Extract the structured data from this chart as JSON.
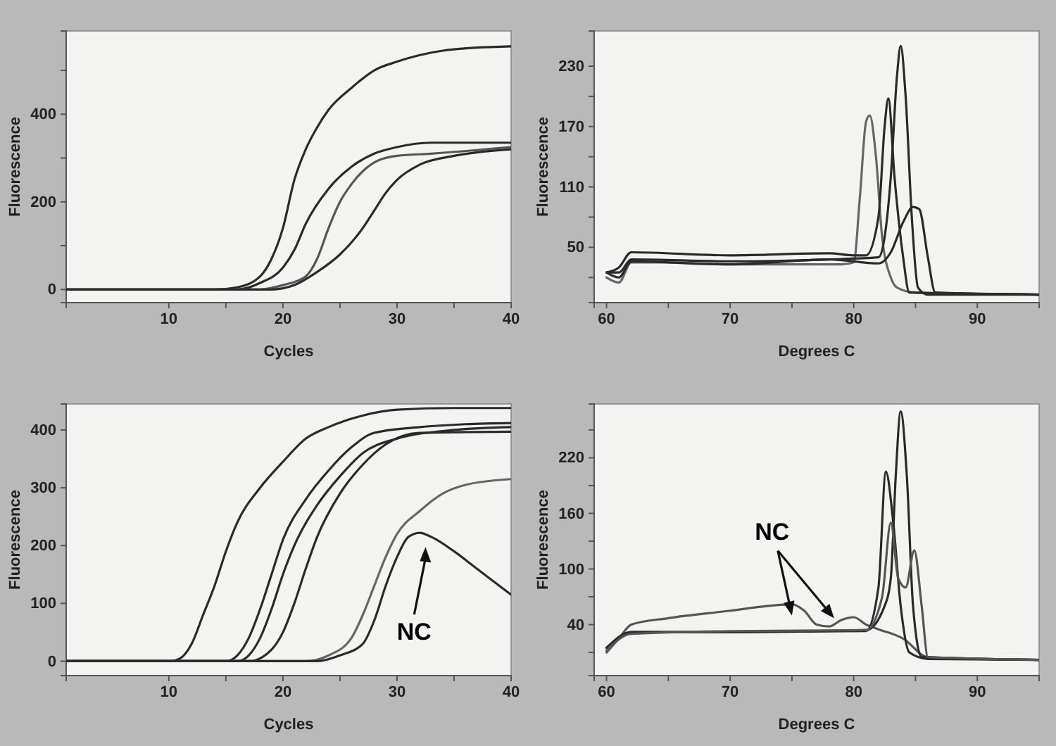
{
  "chart_data": [
    {
      "type": "line",
      "xlabel": "Cycles",
      "ylabel": "Fluorescence",
      "xlim": [
        1,
        40
      ],
      "ylim": [
        -30,
        590
      ],
      "xticks": [
        10,
        {
          "value": 15,
          "label": null
        },
        20,
        {
          "value": 25,
          "label": null
        },
        30,
        {
          "value": 35,
          "label": null
        },
        40
      ],
      "yticks": [
        0,
        {
          "value": 100,
          "label": null
        },
        200,
        {
          "value": 300,
          "label": null
        },
        400,
        {
          "value": 500,
          "label": null
        }
      ],
      "series": [
        {
          "color": "#2a2a2a",
          "x": [
            1,
            14,
            16,
            18,
            19,
            20,
            21,
            22,
            23,
            24,
            26,
            28,
            30,
            32,
            34,
            37,
            40
          ],
          "values": [
            0,
            0,
            5,
            30,
            70,
            140,
            250,
            320,
            370,
            410,
            460,
            500,
            520,
            535,
            545,
            552,
            555
          ]
        },
        {
          "color": "#2a2a2a",
          "x": [
            1,
            16,
            18,
            20,
            21,
            22,
            24,
            26,
            28,
            30,
            33,
            40
          ],
          "values": [
            0,
            0,
            15,
            50,
            90,
            150,
            230,
            280,
            310,
            325,
            335,
            335
          ]
        },
        {
          "color": "#555555",
          "x": [
            1,
            18,
            20,
            22,
            23,
            24,
            25,
            26,
            28,
            30,
            33,
            40
          ],
          "values": [
            0,
            0,
            10,
            30,
            70,
            140,
            200,
            240,
            290,
            305,
            310,
            325
          ]
        },
        {
          "color": "#2a2a2a",
          "x": [
            1,
            19,
            21,
            23,
            25,
            27,
            28,
            29,
            30,
            32,
            35,
            40
          ],
          "values": [
            0,
            0,
            10,
            40,
            80,
            140,
            180,
            220,
            250,
            285,
            305,
            320
          ]
        }
      ]
    },
    {
      "type": "line",
      "xlabel": "Degrees C",
      "ylabel": "Fluorescence",
      "xlim": [
        59,
        95
      ],
      "ylim": [
        -5,
        265
      ],
      "xticks": [
        60,
        {
          "value": 65,
          "label": null
        },
        70,
        {
          "value": 75,
          "label": null
        },
        80,
        {
          "value": 85,
          "label": null
        },
        90
      ],
      "yticks": [
        {
          "value": 20,
          "label": null
        },
        50,
        {
          "value": 80,
          "label": null
        },
        110,
        {
          "value": 140,
          "label": null
        },
        170,
        {
          "value": 200,
          "label": null
        },
        230
      ],
      "series": [
        {
          "color": "#666666",
          "x": [
            60,
            61,
            62,
            65,
            70,
            75,
            79,
            80,
            80.5,
            81,
            81.3,
            81.8,
            82.3,
            83,
            83.5,
            85,
            95
          ],
          "values": [
            20,
            15,
            35,
            35,
            33,
            33,
            33,
            35,
            100,
            175,
            181,
            140,
            60,
            20,
            10,
            5,
            3
          ]
        },
        {
          "color": "#2a2a2a",
          "x": [
            60,
            61,
            62,
            70,
            78,
            80,
            81,
            82,
            82.5,
            82.8,
            83.3,
            84,
            84.5,
            95
          ],
          "values": [
            25,
            30,
            45,
            42,
            44,
            42,
            42,
            80,
            170,
            198,
            120,
            40,
            5,
            3
          ]
        },
        {
          "color": "#2a2a2a",
          "x": [
            60,
            61,
            62,
            70,
            78,
            82,
            83,
            83.5,
            83.8,
            84.2,
            84.7,
            85.2,
            86,
            95
          ],
          "values": [
            25,
            25,
            38,
            36,
            38,
            40,
            120,
            220,
            250,
            200,
            80,
            10,
            3,
            3
          ]
        },
        {
          "color": "#2a2a2a",
          "x": [
            60,
            61,
            62,
            70,
            78,
            82,
            83,
            84,
            84.8,
            85.3,
            86,
            86.6,
            95
          ],
          "values": [
            25,
            20,
            36,
            33,
            38,
            34,
            45,
            75,
            90,
            88,
            40,
            5,
            3
          ]
        }
      ]
    },
    {
      "type": "line",
      "xlabel": "Cycles",
      "ylabel": "Fluorescence",
      "xlim": [
        1,
        40
      ],
      "ylim": [
        -25,
        445
      ],
      "xticks": [
        10,
        {
          "value": 15,
          "label": null
        },
        20,
        {
          "value": 25,
          "label": null
        },
        30,
        {
          "value": 35,
          "label": null
        },
        40
      ],
      "yticks": [
        0,
        100,
        200,
        300,
        400
      ],
      "annotations": [
        "NC"
      ],
      "series": [
        {
          "color": "#2a2a2a",
          "x": [
            1,
            10,
            11,
            12,
            13,
            14,
            15,
            16,
            18,
            20,
            22,
            24,
            27,
            30,
            35,
            40
          ],
          "values": [
            0,
            0,
            5,
            30,
            80,
            130,
            190,
            240,
            300,
            345,
            385,
            405,
            425,
            435,
            438,
            438
          ]
        },
        {
          "color": "#2a2a2a",
          "x": [
            1,
            15,
            16,
            17,
            18,
            19,
            20,
            22,
            24,
            26,
            28,
            32,
            36,
            40
          ],
          "values": [
            0,
            0,
            10,
            40,
            90,
            150,
            210,
            280,
            330,
            370,
            395,
            405,
            410,
            412
          ]
        },
        {
          "color": "#2a2a2a",
          "x": [
            1,
            16,
            17,
            18,
            19,
            20,
            21,
            23,
            25,
            27,
            30,
            35,
            40
          ],
          "values": [
            0,
            0,
            10,
            40,
            90,
            150,
            200,
            270,
            320,
            360,
            385,
            400,
            405
          ]
        },
        {
          "color": "#2a2a2a",
          "x": [
            1,
            17,
            19,
            20,
            21,
            22,
            23,
            25,
            27,
            29,
            32,
            40
          ],
          "values": [
            0,
            0,
            20,
            50,
            100,
            160,
            215,
            290,
            340,
            375,
            395,
            397
          ]
        },
        {
          "color": "#666666",
          "x": [
            1,
            22,
            24,
            26,
            27,
            28,
            29,
            30,
            32,
            34,
            36,
            40
          ],
          "values": [
            0,
            0,
            10,
            40,
            80,
            130,
            180,
            220,
            260,
            290,
            305,
            315
          ]
        },
        {
          "color": "#2a2a2a",
          "x": [
            1,
            23,
            25,
            27,
            28,
            29,
            30,
            31,
            32,
            33,
            35,
            37,
            39,
            40
          ],
          "values": [
            0,
            0,
            10,
            30,
            70,
            130,
            180,
            215,
            222,
            215,
            190,
            160,
            130,
            115
          ]
        }
      ]
    },
    {
      "type": "line",
      "xlabel": "Degrees C",
      "ylabel": "Fluorescence",
      "xlim": [
        59,
        95
      ],
      "ylim": [
        -15,
        278
      ],
      "xticks": [
        60,
        {
          "value": 65,
          "label": null
        },
        70,
        {
          "value": 75,
          "label": null
        },
        80,
        {
          "value": 85,
          "label": null
        },
        90
      ],
      "yticks": [
        {
          "value": 10,
          "label": null
        },
        40,
        {
          "value": 70,
          "label": null
        },
        100,
        {
          "value": 130,
          "label": null
        },
        160,
        {
          "value": 190,
          "label": null
        },
        220,
        {
          "value": 250,
          "label": null
        }
      ],
      "annotations": [
        {
          "text": "NC",
          "x": 75,
          "y": 62
        }
      ],
      "series": [
        {
          "color": "#555555",
          "x": [
            60,
            61,
            62,
            65,
            70,
            73,
            75,
            76,
            77,
            78,
            79,
            80,
            81,
            82,
            84,
            86,
            95
          ],
          "values": [
            10,
            25,
            40,
            47,
            55,
            60,
            62,
            55,
            40,
            38,
            45,
            48,
            40,
            35,
            25,
            5,
            2
          ]
        },
        {
          "color": "#2a2a2a",
          "x": [
            60,
            61,
            62,
            70,
            81,
            82,
            82.6,
            83.2,
            83.8,
            84.5,
            86,
            95
          ],
          "values": [
            15,
            25,
            32,
            32,
            33,
            80,
            205,
            150,
            60,
            10,
            3,
            2
          ]
        },
        {
          "color": "#2a2a2a",
          "x": [
            60,
            62,
            70,
            81,
            82.5,
            83,
            83.4,
            83.8,
            84.3,
            84.8,
            85.5,
            95
          ],
          "values": [
            15,
            32,
            32,
            34,
            60,
            90,
            200,
            270,
            200,
            60,
            5,
            2
          ]
        },
        {
          "color": "#555555",
          "x": [
            60,
            62,
            70,
            81,
            82.3,
            83,
            83.6,
            84.2,
            84.9,
            85.5,
            86,
            95
          ],
          "values": [
            12,
            30,
            33,
            34,
            70,
            150,
            90,
            80,
            120,
            60,
            5,
            2
          ]
        }
      ]
    }
  ]
}
